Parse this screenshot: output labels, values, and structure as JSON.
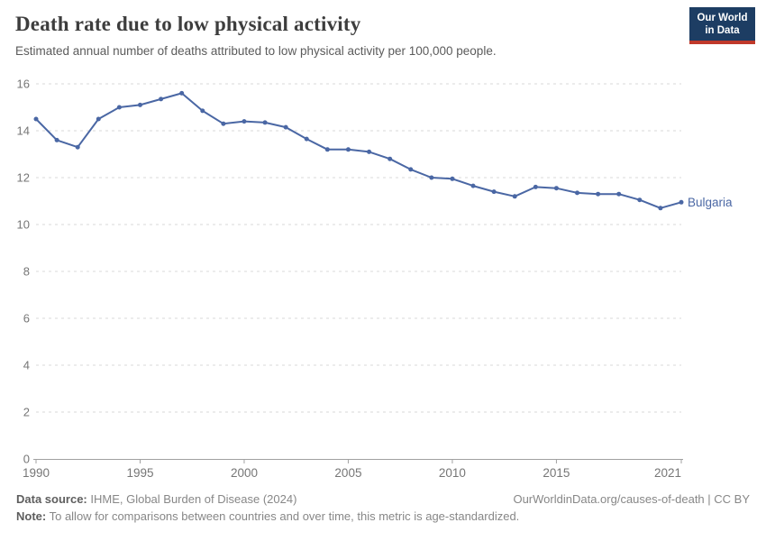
{
  "header": {
    "title": "Death rate due to low physical activity",
    "subtitle": "Estimated annual number of deaths attributed to low physical activity per 100,000 people."
  },
  "logo": {
    "line1": "Our World",
    "line2": "in Data",
    "bg_color": "#1d3d63",
    "bar_color": "#c0392b"
  },
  "chart_data": {
    "type": "line",
    "title": "Death rate due to low physical activity",
    "x": [
      1990,
      1991,
      1992,
      1993,
      1994,
      1995,
      1996,
      1997,
      1998,
      1999,
      2000,
      2001,
      2002,
      2003,
      2004,
      2005,
      2006,
      2007,
      2008,
      2009,
      2010,
      2011,
      2012,
      2013,
      2014,
      2015,
      2016,
      2017,
      2018,
      2019,
      2020,
      2021
    ],
    "series": [
      {
        "name": "Bulgaria",
        "color": "#4a67a4",
        "values": [
          14.5,
          13.6,
          13.3,
          14.5,
          15.0,
          15.1,
          15.35,
          15.6,
          14.85,
          14.3,
          14.4,
          14.35,
          14.15,
          13.65,
          13.2,
          13.2,
          13.1,
          12.8,
          12.35,
          12.0,
          11.95,
          11.65,
          11.4,
          11.2,
          11.6,
          11.55,
          11.35,
          11.3,
          11.3,
          11.05,
          10.7,
          10.95
        ]
      }
    ],
    "xlabel": "",
    "ylabel": "",
    "ylim": [
      0,
      16
    ],
    "yticks": [
      0,
      2,
      4,
      6,
      8,
      10,
      12,
      14,
      16
    ],
    "xticks": [
      1990,
      1995,
      2000,
      2005,
      2010,
      2015,
      2021
    ],
    "grid": "horizontal-dashed",
    "legend_position": "end-of-line-label",
    "end_label": "Bulgaria",
    "colors": {
      "gridline": "#d9d9d9",
      "axis_line": "#a1a1a1",
      "tick_label": "#767676"
    }
  },
  "footer": {
    "data_source_label": "Data source:",
    "data_source_text": " IHME, Global Burden of Disease (2024)",
    "link": "OurWorldinData.org/causes-of-death | CC BY",
    "note_label": "Note:",
    "note_text": " To allow for comparisons between countries and over time, this metric is age-standardized."
  }
}
